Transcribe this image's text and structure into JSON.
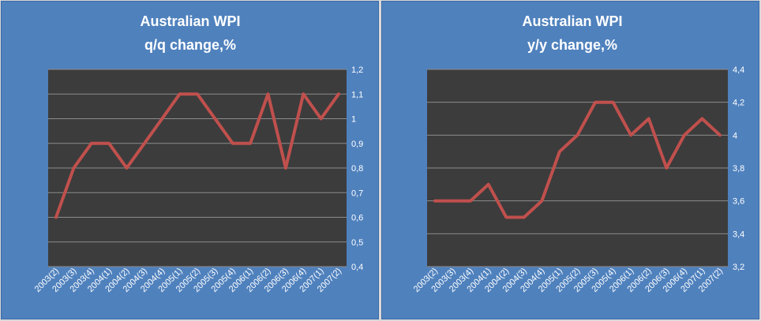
{
  "chart_data": [
    {
      "type": "line",
      "title": "Australian WPI",
      "subtitle": "q/q change,%",
      "xlabel": "",
      "ylabel": "",
      "categories": [
        "2003(2)",
        "2003(3)",
        "2003(4)",
        "2004(1)",
        "2004(2)",
        "2004(3)",
        "2004(4)",
        "2005(1)",
        "2005(2)",
        "2005(3)",
        "2005(4)",
        "2006(1)",
        "2006(2)",
        "2006(3)",
        "2006(4)",
        "2007(1)",
        "2007(2)"
      ],
      "series": [
        {
          "values": [
            0.6,
            0.8,
            0.9,
            0.9,
            0.8,
            0.9,
            1.0,
            1.1,
            1.1,
            1.0,
            0.9,
            0.9,
            1.1,
            0.8,
            1.1,
            1.0,
            1.1
          ]
        }
      ],
      "ylim": [
        0.4,
        1.2
      ],
      "yticks": [
        "0,4",
        "0,5",
        "0,6",
        "0,7",
        "0,8",
        "0,9",
        "1",
        "1,1",
        "1,2"
      ],
      "grid": true,
      "legend": "none",
      "colors": {
        "line": "#c0504d",
        "plot_bg": "#3c3c3c",
        "panel_bg": "#4f81bd",
        "grid": "#8c8c8c",
        "text": "#ffffff"
      }
    },
    {
      "type": "line",
      "title": "Australian WPI",
      "subtitle": "y/y change,%",
      "xlabel": "",
      "ylabel": "",
      "categories": [
        "2003(2)",
        "2003(3)",
        "2003(4)",
        "2004(1)",
        "2004(2)",
        "2004(3)",
        "2004(4)",
        "2005(1)",
        "2005(2)",
        "2005(3)",
        "2005(4)",
        "2006(1)",
        "2006(2)",
        "2006(3)",
        "2006(4)",
        "2007(1)",
        "2007(2)"
      ],
      "series": [
        {
          "values": [
            3.6,
            3.6,
            3.6,
            3.7,
            3.5,
            3.5,
            3.6,
            3.9,
            4.0,
            4.2,
            4.2,
            4.0,
            4.1,
            3.8,
            4.0,
            4.1,
            4.0
          ]
        }
      ],
      "ylim": [
        3.2,
        4.4
      ],
      "yticks": [
        "3,2",
        "3,4",
        "3,6",
        "3,8",
        "4",
        "4,2",
        "4,4"
      ],
      "grid": true,
      "legend": "none",
      "colors": {
        "line": "#c0504d",
        "plot_bg": "#3c3c3c",
        "panel_bg": "#4f81bd",
        "grid": "#8c8c8c",
        "text": "#ffffff"
      }
    }
  ]
}
